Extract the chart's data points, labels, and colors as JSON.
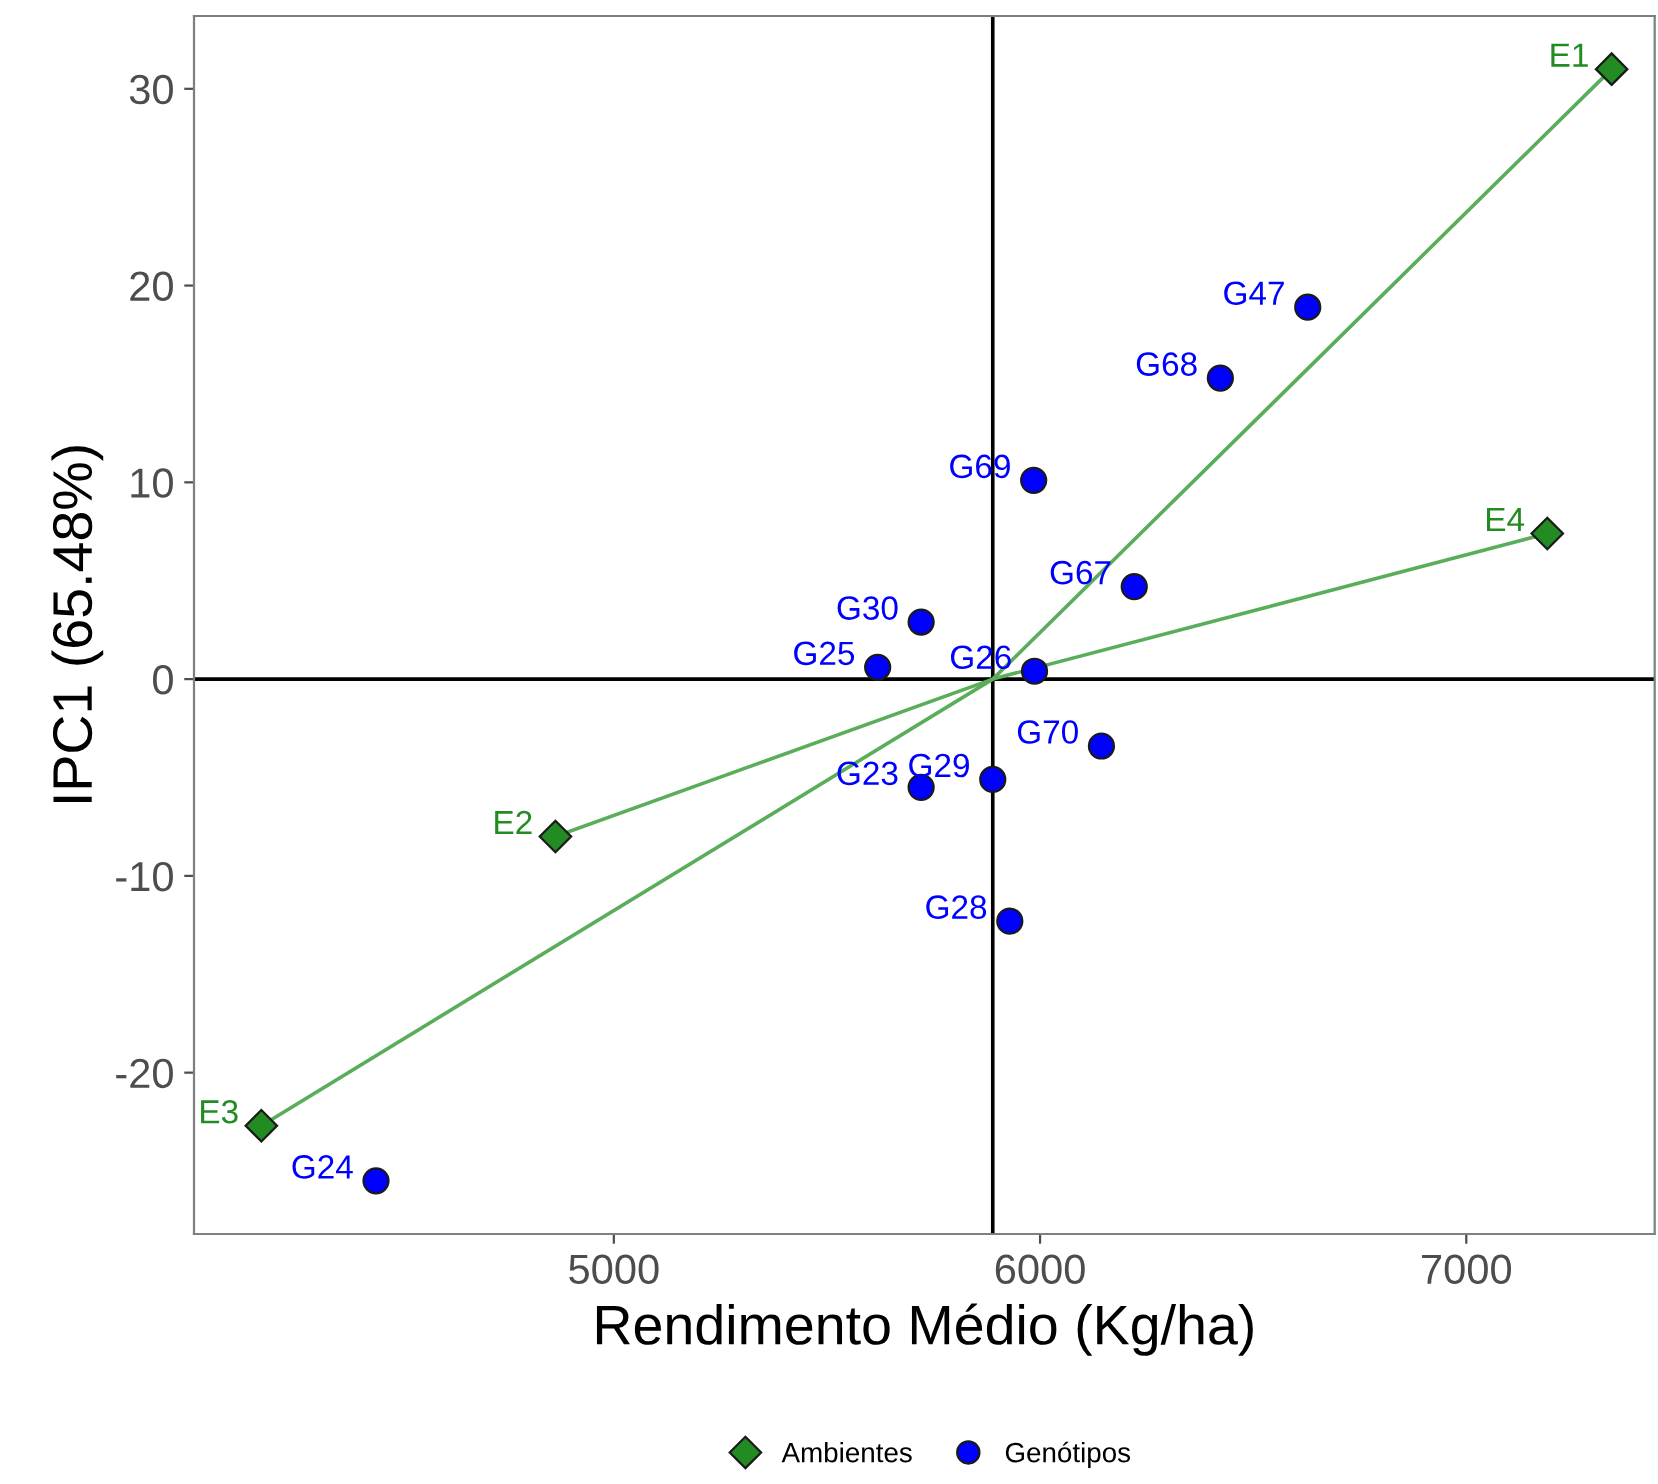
{
  "chart_data": {
    "type": "scatter",
    "xlabel": "Rendimento Médio (Kg/ha)",
    "ylabel": "IPC1 (65.48%)",
    "xlim": [
      4015,
      7442
    ],
    "ylim": [
      -28.2,
      33.7
    ],
    "xticks": [
      5000,
      6000,
      7000
    ],
    "yticks": [
      -20,
      -10,
      0,
      10,
      20,
      30
    ],
    "grid": false,
    "legend": "bottom",
    "ref_lines": [
      {
        "axis": "x",
        "value": 5889,
        "color": "#000000"
      },
      {
        "axis": "y",
        "value": 0,
        "color": "#000000"
      }
    ],
    "series": [
      {
        "type": "line",
        "color": "#5aad5a",
        "x": [
          4173,
          5889,
          7341
        ],
        "values": [
          -22.7,
          0,
          31.0
        ]
      },
      {
        "type": "line",
        "color": "#5aad5a",
        "x": [
          4863,
          5889,
          7190
        ],
        "values": [
          -8.0,
          0,
          7.4
        ]
      },
      {
        "name": "Ambientes",
        "color": "#228b22",
        "marker": "diamond",
        "x": [
          7341,
          4863,
          4173,
          7190
        ],
        "values": [
          31.0,
          -8.0,
          -22.7,
          7.4
        ],
        "value_labels": [
          "E1",
          "E2",
          "E3",
          "E4"
        ]
      },
      {
        "name": "Genótipos",
        "color": "#0000ff",
        "marker": "circle",
        "x": [
          4442,
          5721,
          5619,
          5987,
          5929,
          5889,
          5721,
          6628,
          6221,
          6423,
          5985,
          6144
        ],
        "values": [
          -25.5,
          -5.5,
          0.6,
          0.4,
          -12.3,
          -5.1,
          2.9,
          18.9,
          4.7,
          15.3,
          10.1,
          -3.4
        ],
        "value_labels": [
          "G24",
          "G23",
          "G25",
          "G26",
          "G28",
          "G29",
          "G30",
          "G47",
          "G67",
          "G68",
          "G69",
          "G70"
        ]
      }
    ]
  }
}
